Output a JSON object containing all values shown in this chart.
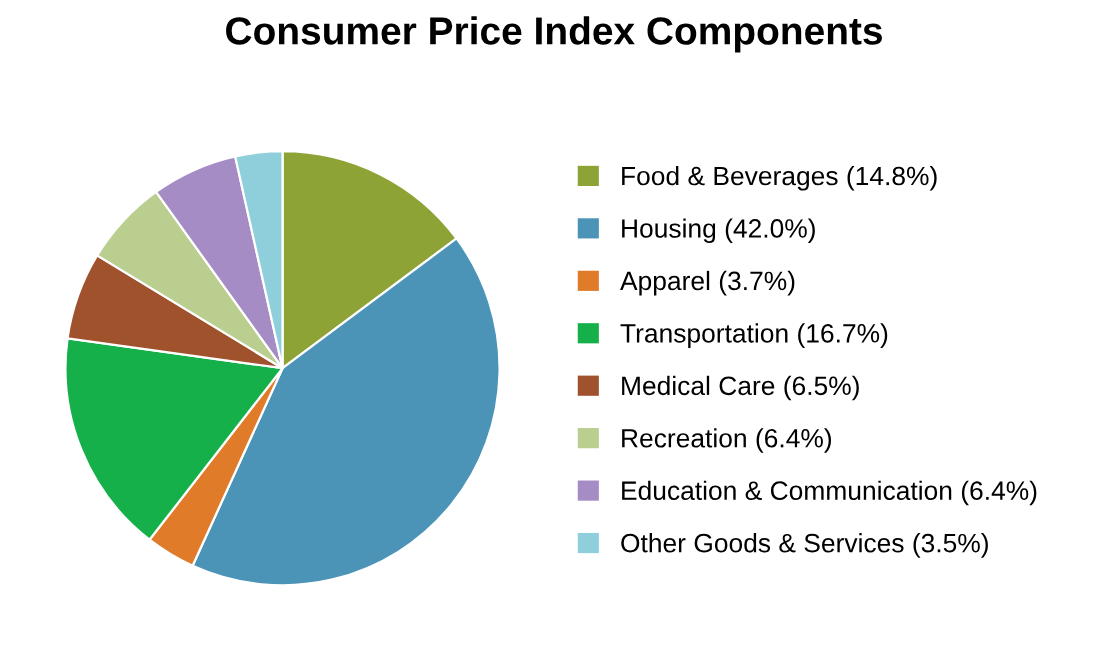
{
  "chart_data": {
    "type": "pie",
    "title": "Consumer Price Index Components",
    "categories": [
      "Food & Beverages (14.8%)",
      "Housing (42.0%)",
      "Apparel (3.7%)",
      "Transportation (16.7%)",
      "Medical Care (6.5%)",
      "Recreation (6.4%)",
      "Education & Communication (6.4%)",
      "Other Goods & Services (3.5%)"
    ],
    "values": [
      14.8,
      42.0,
      3.7,
      16.7,
      6.5,
      6.4,
      6.4,
      3.5
    ],
    "colors": [
      "#8ea335",
      "#4b94b8",
      "#e07b2a",
      "#16b04a",
      "#a0522d",
      "#b9ce8f",
      "#a58cc5",
      "#8fcfdc"
    ],
    "legend": "right"
  }
}
